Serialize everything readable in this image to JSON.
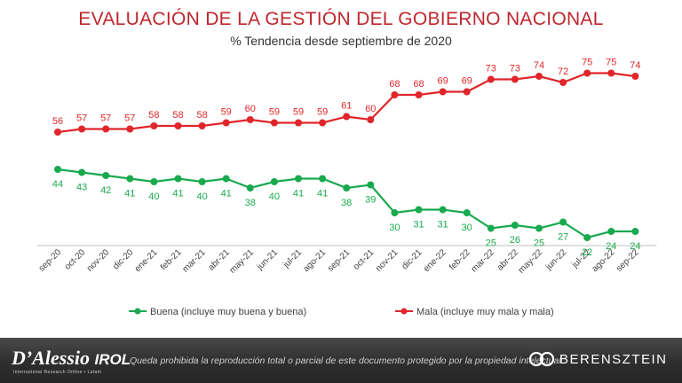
{
  "chart_data": {
    "type": "line",
    "title": "EVALUACIÓN DE LA GESTIÓN DEL GOBIERNO NACIONAL",
    "subtitle": "% Tendencia desde septiembre de 2020",
    "categories": [
      "sep-20",
      "oct-20",
      "nov-20",
      "dic-20",
      "ene-21",
      "feb-21",
      "mar-21",
      "abr-21",
      "may-21",
      "jun-21",
      "jul-21",
      "ago-21",
      "sep-21",
      "oct-21",
      "nov-21",
      "dic-21",
      "ene-22",
      "feb-22",
      "mar-22",
      "abr-22",
      "may-22",
      "jun-22",
      "jul-22",
      "ago-22",
      "sep-22"
    ],
    "series": [
      {
        "name": "Mala (incluye muy mala y mala)",
        "color": "#e0262b",
        "label_position": "above",
        "values": [
          56,
          57,
          57,
          57,
          58,
          58,
          58,
          59,
          60,
          59,
          59,
          59,
          61,
          60,
          68,
          68,
          69,
          69,
          73,
          73,
          74,
          72,
          75,
          75,
          74
        ]
      },
      {
        "name": "Buena (incluye muy buena y buena)",
        "color": "#19a94f",
        "label_position": "below",
        "values": [
          44,
          43,
          42,
          41,
          40,
          41,
          40,
          41,
          38,
          40,
          41,
          41,
          38,
          39,
          30,
          31,
          31,
          30,
          25,
          26,
          25,
          27,
          22,
          24,
          24
        ]
      }
    ],
    "ylim": [
      10,
      90
    ],
    "grid": false,
    "xlabel": "",
    "ylabel": "",
    "legend_position": "bottom"
  },
  "footer": {
    "left_logo": "D’Alessio",
    "left_logo_suffix": "IROL",
    "left_logo_sub": "International Research Online • Latam",
    "disclaimer": "Queda prohibida la reproducción total o parcial de este documento protegido por la propiedad intelectual.",
    "right_logo": "BERENSZTEIN"
  }
}
